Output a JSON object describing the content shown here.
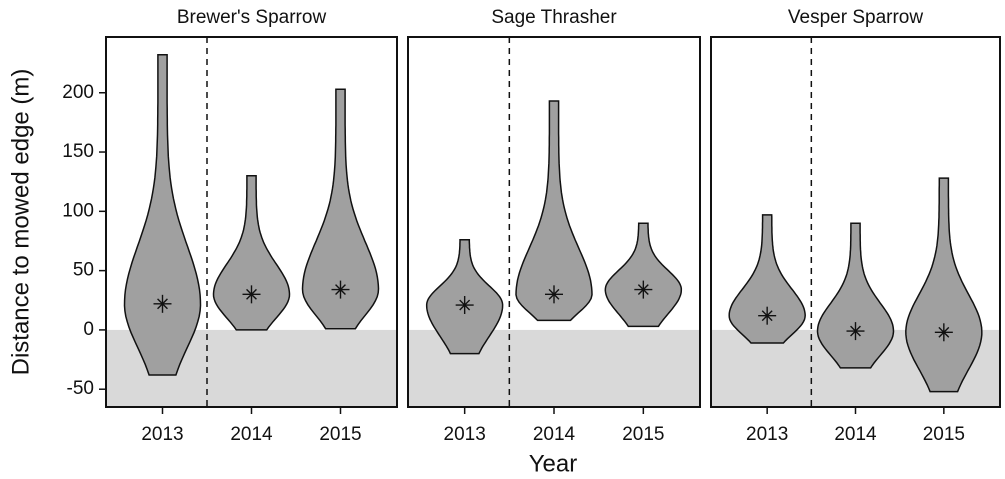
{
  "chart_data": [
    {
      "type": "violin",
      "title": "Brewer's Sparrow",
      "categories": [
        "2013",
        "2014",
        "2015"
      ],
      "color": "#a0a0a0",
      "min": [
        -38,
        0,
        1
      ],
      "max": [
        232,
        130,
        203
      ],
      "mean": [
        22,
        30,
        34
      ]
    },
    {
      "type": "violin",
      "title": "Sage Thrasher",
      "categories": [
        "2013",
        "2014",
        "2015"
      ],
      "color": "#a0a0a0",
      "min": [
        -20,
        8,
        3
      ],
      "max": [
        76,
        193,
        90
      ],
      "mean": [
        21,
        30,
        34
      ]
    },
    {
      "type": "violin",
      "title": "Vesper Sparrow",
      "categories": [
        "2013",
        "2014",
        "2015"
      ],
      "color": "#a0a0a0",
      "min": [
        -11,
        -32,
        -52
      ],
      "max": [
        97,
        90,
        128
      ],
      "mean": [
        12,
        -1,
        -2
      ]
    }
  ],
  "y_axis": {
    "label": "Distance to mowed edge (m)",
    "ylim": [
      -65,
      247
    ],
    "yticks": [
      -50,
      0,
      50,
      100,
      150,
      200
    ]
  },
  "x_axis": {
    "label": "Year"
  }
}
